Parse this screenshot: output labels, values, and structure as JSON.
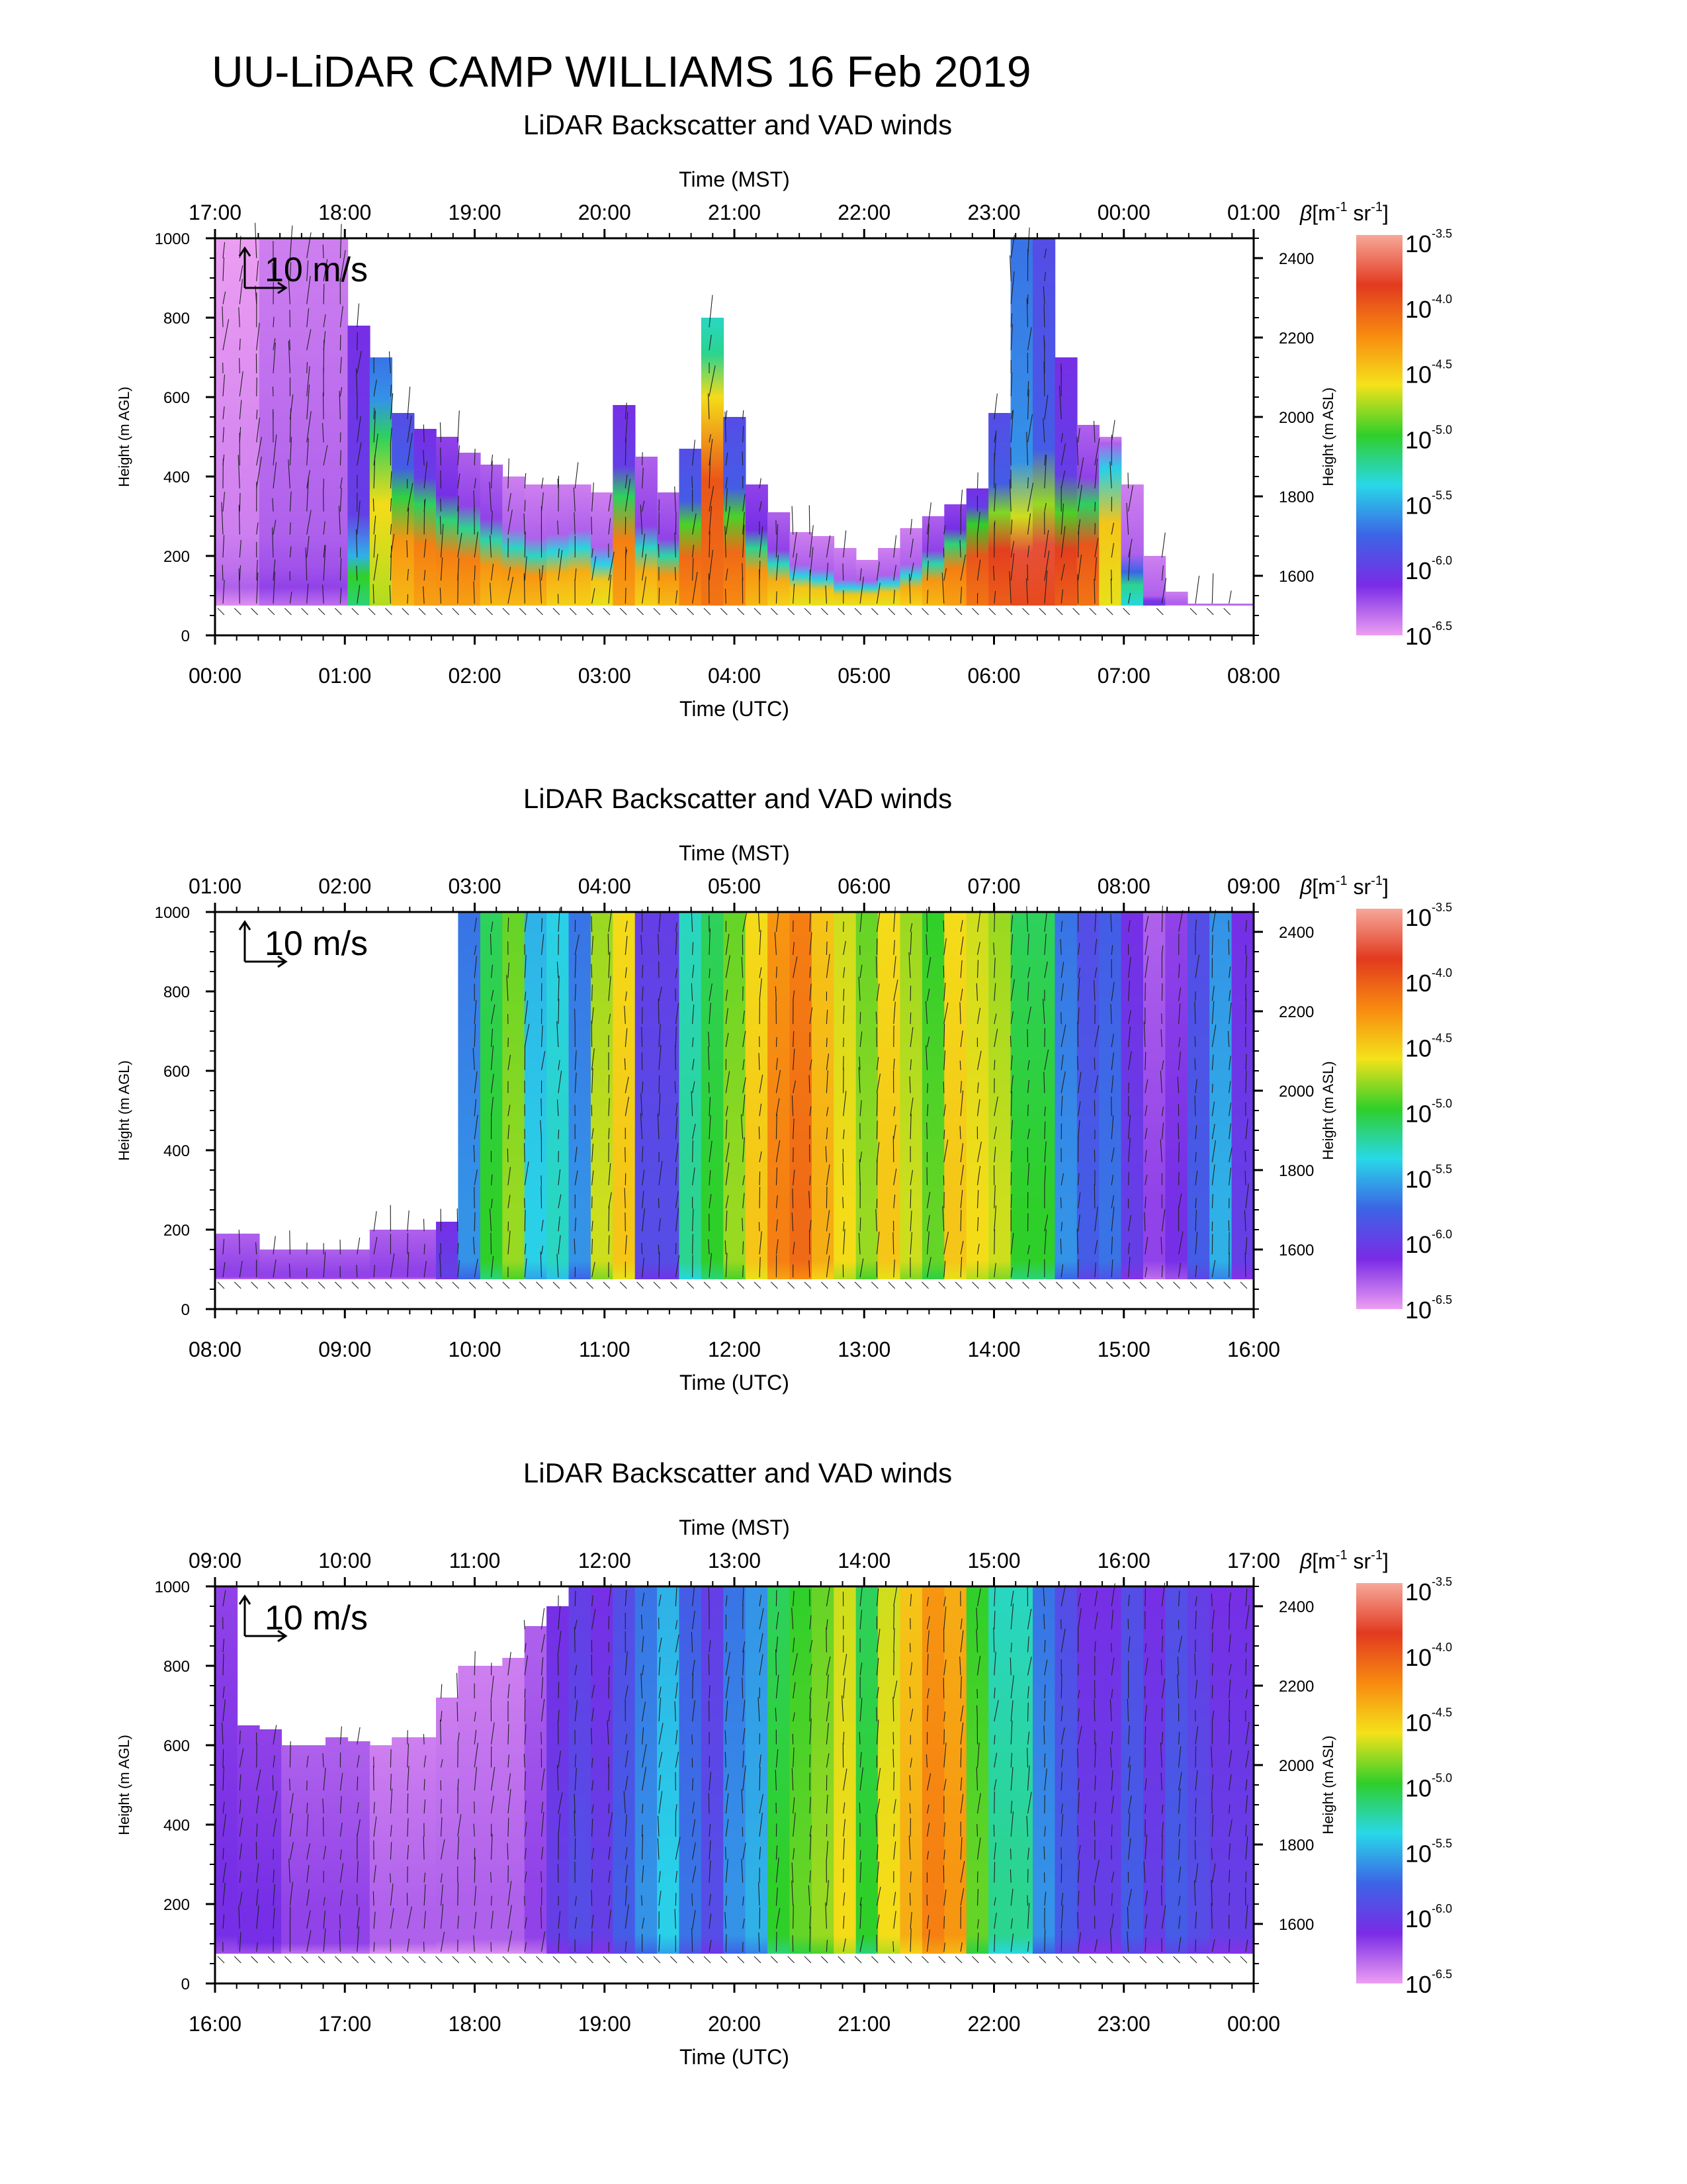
{
  "title": "UU-LiDAR CAMP WILLIAMS 16 Feb 2019",
  "colors": {
    "axis": "#000000",
    "vector": "#222222"
  },
  "colorbar": {
    "label_beta": "β",
    "label_units": "[m",
    "label_sup1": "-1",
    "label_mid": " sr",
    "label_sup2": "-1",
    "label_close": "]",
    "tick_base": "10",
    "ticks": [
      "-3.5",
      "-4.0",
      "-4.5",
      "-5.0",
      "-5.5",
      "-6.0",
      "-6.5"
    ],
    "stops": [
      "#f6a89a",
      "#e23a1f",
      "#f88a10",
      "#f4e21a",
      "#2fcf2a",
      "#28d8e8",
      "#3c64e6",
      "#7a2be6",
      "#ec9ef2"
    ]
  },
  "vector_scale_label": "10 m/s",
  "chart_data": [
    {
      "type": "heatmap",
      "title": "LiDAR Backscatter and VAD winds",
      "top_axis_label": "Time (MST)",
      "xlabel": "Time (UTC)",
      "ylabel": "Height (m AGL)",
      "ylabel_right": "Height (m ASL)",
      "x_utc_ticks": [
        "00:00",
        "01:00",
        "02:00",
        "03:00",
        "04:00",
        "05:00",
        "06:00",
        "07:00",
        "08:00"
      ],
      "x_mst_ticks": [
        "17:00",
        "18:00",
        "19:00",
        "20:00",
        "21:00",
        "22:00",
        "23:00",
        "00:00",
        "01:00"
      ],
      "ylim": [
        0,
        1000
      ],
      "y_ticks": [
        "0",
        "200",
        "400",
        "600",
        "800",
        "1000"
      ],
      "ylim_right": [
        1450,
        2450
      ],
      "y_right_ticks": [
        "1600",
        "1800",
        "2000",
        "2200",
        "2400"
      ],
      "aerosol_top_m": [
        1000,
        1000,
        1000,
        1000,
        1000,
        1000,
        780,
        700,
        560,
        520,
        500,
        460,
        430,
        400,
        380,
        380,
        380,
        360,
        580,
        450,
        360,
        470,
        800,
        550,
        380,
        310,
        260,
        250,
        220,
        190,
        220,
        270,
        300,
        330,
        370,
        560,
        1000,
        1000,
        700,
        530,
        500,
        380,
        200,
        110,
        80,
        80,
        80
      ],
      "layer_top_m": [
        0,
        0,
        0,
        0,
        0,
        0,
        200,
        500,
        350,
        330,
        290,
        270,
        240,
        220,
        200,
        210,
        220,
        180,
        350,
        220,
        200,
        280,
        600,
        300,
        220,
        180,
        150,
        140,
        120,
        120,
        130,
        150,
        180,
        230,
        280,
        310,
        300,
        330,
        310,
        330,
        420,
        160,
        0,
        0,
        0,
        0,
        0
      ],
      "log_beta_layer": [
        -6.3,
        -6.3,
        -6.2,
        -6.2,
        -6.2,
        -6.2,
        -5.0,
        -4.6,
        -4.3,
        -4.2,
        -4.2,
        -4.2,
        -4.3,
        -4.3,
        -4.3,
        -4.4,
        -4.4,
        -4.5,
        -4.2,
        -4.4,
        -4.3,
        -4.1,
        -4.0,
        -4.1,
        -4.3,
        -4.4,
        -4.5,
        -4.5,
        -4.5,
        -4.5,
        -4.5,
        -4.4,
        -4.3,
        -4.2,
        -4.0,
        -3.9,
        -3.8,
        -3.8,
        -3.9,
        -4.0,
        -4.5,
        -5.2,
        -6.0,
        -6.3,
        -6.3,
        -6.3,
        -6.3
      ],
      "log_beta_aloft": [
        -6.4,
        -6.4,
        -6.3,
        -6.3,
        -6.3,
        -6.3,
        -6.0,
        -5.6,
        -5.8,
        -6.0,
        -6.1,
        -6.2,
        -6.2,
        -6.3,
        -6.3,
        -6.3,
        -6.3,
        -6.3,
        -6.0,
        -6.2,
        -6.2,
        -5.8,
        -5.2,
        -5.8,
        -6.1,
        -6.2,
        -6.3,
        -6.3,
        -6.3,
        -6.3,
        -6.3,
        -6.3,
        -6.2,
        -6.1,
        -6.0,
        -5.8,
        -5.6,
        -5.8,
        -6.0,
        -6.2,
        -6.3,
        -6.3,
        -6.3,
        -6.3,
        -6.3,
        -6.3,
        -6.3
      ]
    },
    {
      "type": "heatmap",
      "title": "LiDAR Backscatter and VAD winds",
      "top_axis_label": "Time (MST)",
      "xlabel": "Time (UTC)",
      "ylabel": "Height (m AGL)",
      "ylabel_right": "Height (m ASL)",
      "x_utc_ticks": [
        "08:00",
        "09:00",
        "10:00",
        "11:00",
        "12:00",
        "13:00",
        "14:00",
        "15:00",
        "16:00"
      ],
      "x_mst_ticks": [
        "01:00",
        "02:00",
        "03:00",
        "04:00",
        "05:00",
        "06:00",
        "07:00",
        "08:00",
        "09:00"
      ],
      "ylim": [
        0,
        1000
      ],
      "y_ticks": [
        "0",
        "200",
        "400",
        "600",
        "800",
        "1000"
      ],
      "ylim_right": [
        1450,
        2450
      ],
      "y_right_ticks": [
        "1600",
        "1800",
        "2000",
        "2200",
        "2400"
      ],
      "aerosol_top_m": [
        190,
        190,
        150,
        150,
        150,
        150,
        150,
        200,
        200,
        200,
        220,
        1000,
        1000,
        1000,
        1000,
        1000,
        1000,
        1000,
        1000,
        1000,
        1000,
        1000,
        1000,
        1000,
        1000,
        1000,
        1000,
        1000,
        1000,
        1000,
        1000,
        1000,
        1000,
        1000,
        1000,
        1000,
        1000,
        1000,
        1000,
        1000,
        1000,
        1000,
        1000,
        1000,
        1000,
        1000,
        1000
      ],
      "layer_top_m": [
        0,
        0,
        0,
        0,
        0,
        0,
        0,
        0,
        0,
        0,
        0,
        0,
        0,
        0,
        0,
        0,
        0,
        0,
        0,
        0,
        0,
        0,
        0,
        0,
        0,
        0,
        0,
        0,
        0,
        0,
        0,
        0,
        0,
        0,
        0,
        0,
        0,
        0,
        0,
        0,
        0,
        0,
        0,
        0,
        0,
        0,
        0
      ],
      "log_beta_layer": [
        -6.2,
        -6.2,
        -6.2,
        -6.2,
        -6.2,
        -6.2,
        -6.2,
        -6.2,
        -6.2,
        -6.2,
        -6.0,
        -5.6,
        -5.0,
        -4.8,
        -5.4,
        -5.3,
        -5.6,
        -4.7,
        -4.5,
        -5.9,
        -5.9,
        -5.2,
        -5.0,
        -4.8,
        -4.5,
        -4.2,
        -4.1,
        -4.4,
        -4.6,
        -4.8,
        -4.5,
        -4.7,
        -4.9,
        -4.5,
        -4.6,
        -4.7,
        -5.0,
        -5.0,
        -5.6,
        -5.8,
        -5.7,
        -6.0,
        -6.2,
        -6.1,
        -5.8,
        -5.5,
        -6.0
      ],
      "log_beta_aloft": [
        -6.2,
        -6.2,
        -6.2,
        -6.2,
        -6.2,
        -6.2,
        -6.2,
        -6.2,
        -6.2,
        -6.2,
        -6.0,
        -5.6,
        -5.0,
        -4.8,
        -5.4,
        -5.3,
        -5.6,
        -4.7,
        -4.5,
        -5.9,
        -5.9,
        -5.2,
        -5.0,
        -4.8,
        -4.5,
        -4.2,
        -4.1,
        -4.4,
        -4.6,
        -4.8,
        -4.5,
        -4.7,
        -4.9,
        -4.5,
        -4.6,
        -4.7,
        -5.0,
        -5.0,
        -5.6,
        -5.8,
        -5.7,
        -6.0,
        -6.2,
        -6.1,
        -5.8,
        -5.5,
        -6.0
      ]
    },
    {
      "type": "heatmap",
      "title": "LiDAR Backscatter and VAD winds",
      "top_axis_label": "Time (MST)",
      "xlabel": "Time (UTC)",
      "ylabel": "Height (m AGL)",
      "ylabel_right": "Height (m ASL)",
      "x_utc_ticks": [
        "16:00",
        "17:00",
        "18:00",
        "19:00",
        "20:00",
        "21:00",
        "22:00",
        "23:00",
        "00:00"
      ],
      "x_mst_ticks": [
        "09:00",
        "10:00",
        "11:00",
        "12:00",
        "13:00",
        "14:00",
        "15:00",
        "16:00",
        "17:00"
      ],
      "ylim": [
        0,
        1000
      ],
      "y_ticks": [
        "0",
        "200",
        "400",
        "600",
        "800",
        "1000"
      ],
      "ylim_right": [
        1450,
        2450
      ],
      "y_right_ticks": [
        "1600",
        "1800",
        "2000",
        "2200",
        "2400"
      ],
      "aerosol_top_m": [
        1000,
        650,
        640,
        600,
        600,
        620,
        610,
        600,
        620,
        620,
        720,
        800,
        800,
        820,
        900,
        950,
        1000,
        1000,
        1000,
        1000,
        1000,
        1000,
        1000,
        1000,
        1000,
        1000,
        1000,
        1000,
        1000,
        1000,
        1000,
        1000,
        1000,
        1000,
        1000,
        1000,
        1000,
        1000,
        1000,
        1000,
        1000,
        1000,
        1000,
        1000,
        1000,
        1000,
        1000
      ],
      "layer_top_m": [
        0,
        0,
        0,
        0,
        0,
        0,
        0,
        0,
        0,
        0,
        0,
        0,
        0,
        0,
        0,
        0,
        0,
        0,
        0,
        0,
        0,
        0,
        0,
        0,
        0,
        0,
        0,
        0,
        0,
        0,
        0,
        0,
        0,
        0,
        0,
        0,
        0,
        0,
        0,
        0,
        0,
        0,
        0,
        0,
        0,
        0,
        0
      ],
      "log_beta_layer": [
        -6.1,
        -6.1,
        -6.1,
        -6.2,
        -6.2,
        -6.2,
        -6.2,
        -6.3,
        -6.3,
        -6.3,
        -6.3,
        -6.3,
        -6.3,
        -6.3,
        -6.2,
        -6.0,
        -5.9,
        -6.0,
        -5.8,
        -5.6,
        -5.4,
        -5.7,
        -5.9,
        -5.6,
        -5.5,
        -5.0,
        -4.9,
        -4.8,
        -4.6,
        -5.0,
        -4.6,
        -4.4,
        -4.2,
        -4.3,
        -4.9,
        -5.2,
        -5.2,
        -5.6,
        -5.8,
        -6.0,
        -6.0,
        -5.8,
        -6.0,
        -5.8,
        -5.9,
        -6.0,
        -6.0
      ],
      "log_beta_aloft": [
        -6.1,
        -6.1,
        -6.1,
        -6.2,
        -6.2,
        -6.2,
        -6.2,
        -6.3,
        -6.3,
        -6.3,
        -6.3,
        -6.3,
        -6.3,
        -6.3,
        -6.2,
        -6.0,
        -5.9,
        -6.0,
        -5.8,
        -5.6,
        -5.4,
        -5.7,
        -5.9,
        -5.6,
        -5.5,
        -5.0,
        -4.9,
        -4.8,
        -4.6,
        -5.0,
        -4.6,
        -4.4,
        -4.2,
        -4.3,
        -4.9,
        -5.2,
        -5.2,
        -5.6,
        -5.8,
        -6.0,
        -6.0,
        -5.8,
        -6.0,
        -5.8,
        -5.9,
        -6.0,
        -6.0
      ]
    }
  ]
}
